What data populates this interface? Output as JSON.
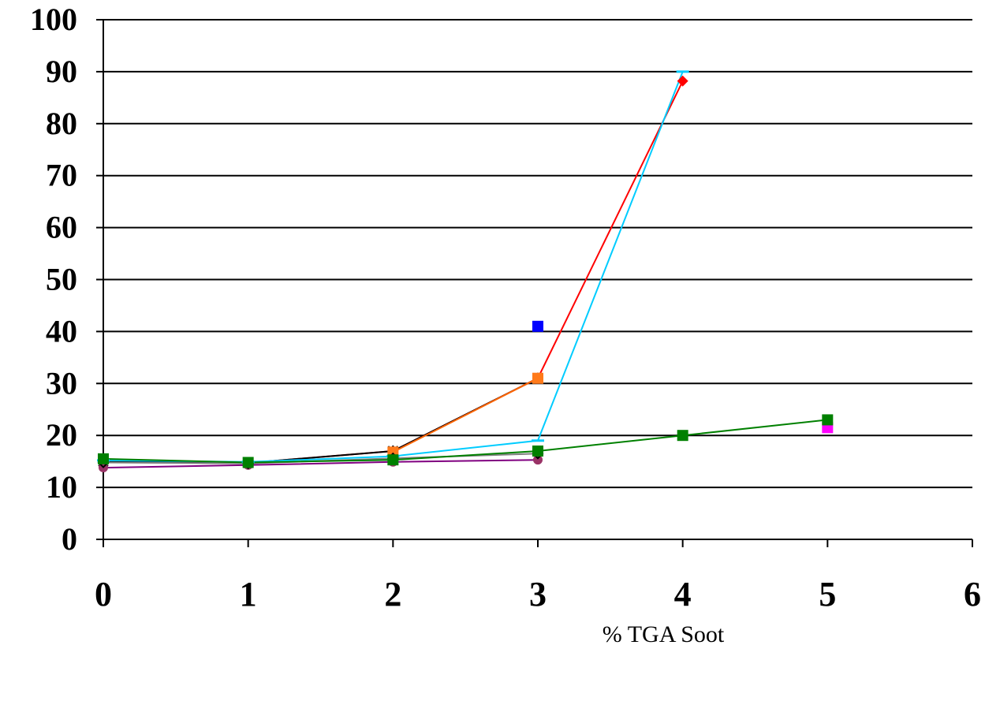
{
  "chart_data": {
    "type": "line",
    "title": "",
    "xlabel": "% TGA Soot",
    "ylabel": "",
    "xlim": [
      0,
      6
    ],
    "ylim": [
      0,
      100
    ],
    "x_ticks": [
      "0",
      "1",
      "2",
      "3",
      "4",
      "5",
      "6"
    ],
    "y_ticks": [
      "0",
      "10",
      "20",
      "30",
      "40",
      "50",
      "60",
      "70",
      "80",
      "90",
      "100"
    ],
    "grid": {
      "horizontal": true,
      "vertical": false
    },
    "legend": "none",
    "series": [
      {
        "color": "#ff0000",
        "marker": "diamond",
        "marker_color": "#ff0000",
        "points": [
          [
            0,
            15
          ],
          [
            1,
            14.7
          ],
          [
            2,
            17
          ],
          [
            3,
            31
          ],
          [
            4,
            88.2
          ]
        ]
      },
      {
        "color": "#000000",
        "marker": "star",
        "marker_color": "#000000",
        "points": [
          [
            0,
            15
          ],
          [
            1,
            14.7
          ],
          [
            2,
            17
          ],
          [
            3,
            31
          ]
        ]
      },
      {
        "color": "#ff6600",
        "marker": "square",
        "marker_color": "#ff7a1a",
        "points": [
          [
            2,
            16.8
          ],
          [
            3,
            31
          ]
        ]
      },
      {
        "color": "#0000ff",
        "marker": "square",
        "marker_color": "#0000ff",
        "points": [
          [
            3,
            41
          ]
        ]
      },
      {
        "color": "#00ccff",
        "marker": "dash",
        "marker_color": "#00ccff",
        "points": [
          [
            0,
            15.2
          ],
          [
            1,
            14.9
          ],
          [
            2,
            16
          ],
          [
            3,
            19
          ],
          [
            4,
            90
          ]
        ]
      },
      {
        "color": "#800080",
        "marker": "circle",
        "marker_color": "#993366",
        "points": [
          [
            0,
            13.8
          ],
          [
            1,
            14.3
          ],
          [
            2,
            14.9
          ],
          [
            3,
            15.3
          ]
        ]
      },
      {
        "color": "#808080",
        "marker": "diamond-open",
        "marker_color": "#006400",
        "points": [
          [
            0,
            14.8
          ],
          [
            1,
            14.6
          ],
          [
            2,
            15.6
          ],
          [
            3,
            16.5
          ]
        ]
      },
      {
        "color": "#ff00ff",
        "marker": "square",
        "marker_color": "#ff00ff",
        "points": [
          [
            5,
            21.5
          ]
        ]
      },
      {
        "color": "#008000",
        "marker": "square",
        "marker_color": "#008000",
        "points": [
          [
            0,
            15.5
          ],
          [
            1,
            14.8
          ],
          [
            2,
            15.3
          ],
          [
            3,
            17
          ],
          [
            4,
            20
          ],
          [
            5,
            23
          ]
        ]
      }
    ]
  }
}
